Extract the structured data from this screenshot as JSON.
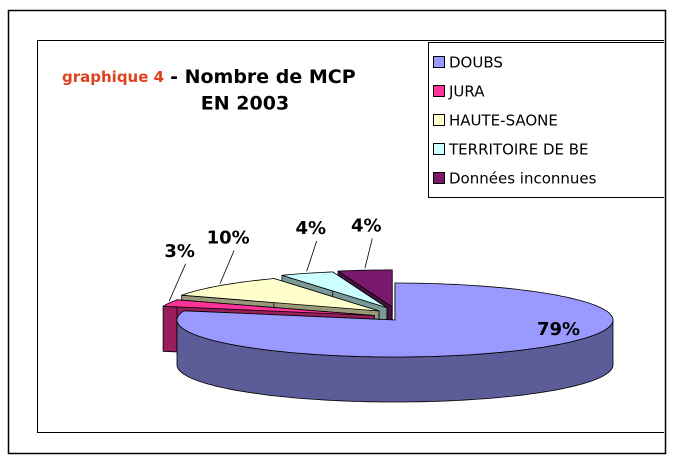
{
  "chart_data": {
    "type": "pie3d",
    "title": {
      "prefix": "graphique 4",
      "lines": [
        "- Nombre de MCP",
        "EN 2003"
      ]
    },
    "categories": [
      "DOUBS",
      "JURA",
      "HAUTE-SAONE",
      "TERRITOIRE DE BE",
      "Données inconnues"
    ],
    "values": [
      79,
      3,
      10,
      4,
      4
    ],
    "value_labels": [
      "79%",
      "3%",
      "10%",
      "4%",
      "4%"
    ],
    "colors": [
      "#9999ff",
      "#ff3399",
      "#ffffcc",
      "#ccffff",
      "#7a1a6e"
    ],
    "legend": "top-right"
  }
}
